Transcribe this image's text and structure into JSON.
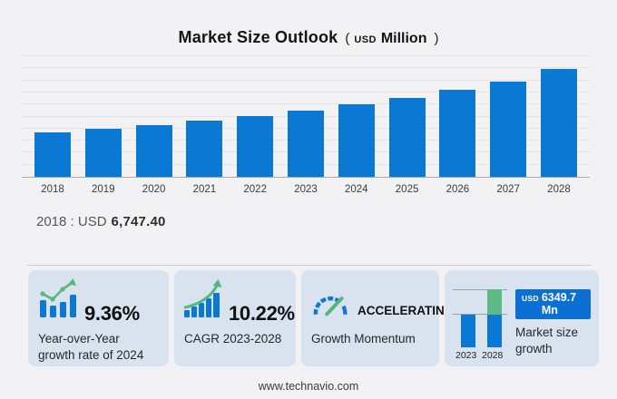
{
  "title": {
    "text": "Market Size Outlook",
    "unit_prefix": "(",
    "unit_currency": "USD",
    "unit_scale": "Million",
    "unit_suffix": ")"
  },
  "chart_data": {
    "type": "bar",
    "title": "Market Size Outlook (USD Million)",
    "unit": "USD Million",
    "categories": [
      "2018",
      "2019",
      "2020",
      "2021",
      "2022",
      "2023",
      "2024",
      "2025",
      "2026",
      "2027",
      "2028"
    ],
    "values": [
      6747.4,
      7310,
      7930,
      8600,
      9330,
      10133.9,
      11082.4,
      12080,
      13230,
      14600,
      16483.6
    ],
    "xlabel": "",
    "ylabel": "",
    "ylim": [
      0,
      18400
    ],
    "grid": true,
    "legend": false,
    "bar_color": "#0b79d4"
  },
  "summary": {
    "label": "2018 : USD",
    "value": "6,747.40"
  },
  "cards": [
    {
      "icon": "bar-chart-trend-icon",
      "stat": "9.36%",
      "desc": "Year-over-Year growth rate of 2024"
    },
    {
      "icon": "bar-chart-growth-arrow-icon",
      "stat": "10.22%",
      "desc": "CAGR 2023-2028"
    },
    {
      "icon": "gauge-icon",
      "stat": "ACCELERATING",
      "desc": "Growth Momentum"
    },
    {
      "icon": "mini-growth-chart",
      "badge_currency": "USD",
      "badge_value": "6349.7 Mn",
      "desc": "Market size growth",
      "mini_chart": {
        "type": "bar",
        "labels": [
          "2023",
          "2028"
        ],
        "base_value": 10133.9,
        "growth_value": 6349.7
      }
    }
  ],
  "footer": {
    "url": "www.technavio.com"
  },
  "colors": {
    "background": "#f2f2f4",
    "bar_blue": "#0b79d4",
    "accent_green": "#54b87e",
    "card_background": "#d9e3f0",
    "badge_blue": "#0b6fd3",
    "gridline": "#e3e3e6",
    "axis": "#a9a9ae"
  }
}
